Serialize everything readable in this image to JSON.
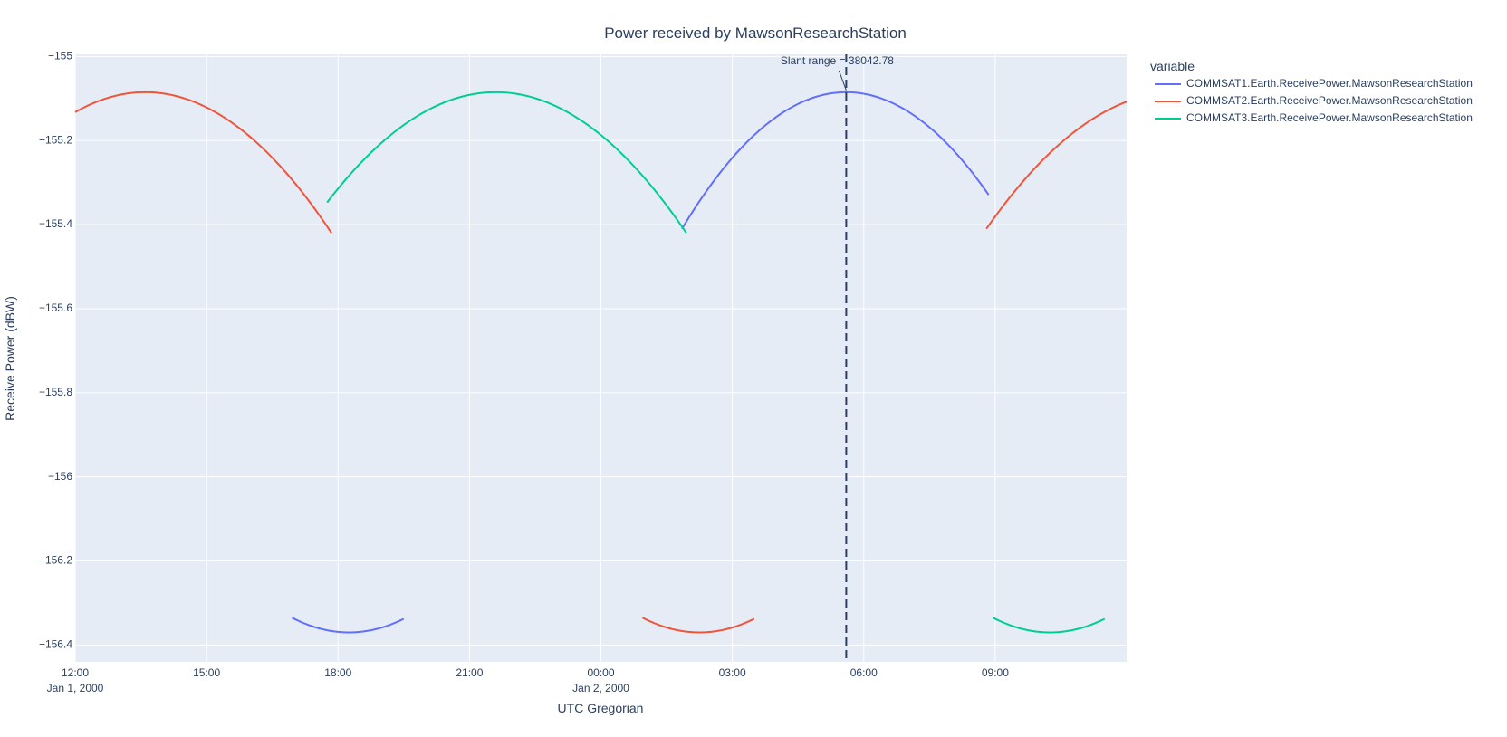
{
  "chart_data": {
    "type": "line",
    "title": "Power received by MawsonResearchStation",
    "xlabel": "UTC Gregorian",
    "ylabel": "Receive Power (dBW)",
    "x_unit": "hours since 2000-01-01 00:00 UTC",
    "xlim": [
      12,
      36
    ],
    "ylim": [
      -156.44,
      -154.995
    ],
    "grid": true,
    "plot_background": "#e5ecf6",
    "x_ticks": [
      {
        "value": 12,
        "label": "12:00",
        "sublabel": "Jan 1, 2000"
      },
      {
        "value": 15,
        "label": "15:00",
        "sublabel": ""
      },
      {
        "value": 18,
        "label": "18:00",
        "sublabel": ""
      },
      {
        "value": 21,
        "label": "21:00",
        "sublabel": ""
      },
      {
        "value": 24,
        "label": "00:00",
        "sublabel": "Jan 2, 2000"
      },
      {
        "value": 27,
        "label": "03:00",
        "sublabel": ""
      },
      {
        "value": 30,
        "label": "06:00",
        "sublabel": ""
      },
      {
        "value": 33,
        "label": "09:00",
        "sublabel": ""
      }
    ],
    "y_ticks": [
      {
        "value": -155,
        "label": "−155"
      },
      {
        "value": -155.2,
        "label": "−155.2"
      },
      {
        "value": -155.4,
        "label": "−155.4"
      },
      {
        "value": -155.6,
        "label": "−155.6"
      },
      {
        "value": -155.8,
        "label": "−155.8"
      },
      {
        "value": -156,
        "label": "−156"
      },
      {
        "value": -156.2,
        "label": "−156.2"
      },
      {
        "value": -156.4,
        "label": "−156.4"
      }
    ],
    "legend": {
      "title": "variable",
      "position": "top-right"
    },
    "series": [
      {
        "name": "COMMSAT1.Earth.ReceivePower.MawsonResearchStation",
        "color": "#636efa",
        "segments": [
          {
            "type": "arc",
            "x_start": 16.95,
            "x_end": 19.5,
            "x_peak": 18.25,
            "y_peak": -156.37,
            "y_edge": -156.335
          },
          {
            "type": "arc",
            "x_start": 25.85,
            "x_end": 32.85,
            "x_peak": 29.6,
            "y_peak": -155.085,
            "y_edge": -155.41
          }
        ]
      },
      {
        "name": "COMMSAT2.Earth.ReceivePower.MawsonResearchStation",
        "color": "#ef553b",
        "segments": [
          {
            "type": "arc",
            "x_start": 12,
            "x_end": 17.85,
            "x_peak": 13.6,
            "y_peak": -155.085,
            "y_edge": -155.42
          },
          {
            "type": "arc",
            "x_start": 24.95,
            "x_end": 27.5,
            "x_peak": 26.25,
            "y_peak": -156.37,
            "y_edge": -156.335
          },
          {
            "type": "arc",
            "x_start": 32.8,
            "x_end": 36,
            "x_peak": 37.15,
            "y_peak": -155.085,
            "y_edge": -155.41
          }
        ]
      },
      {
        "name": "COMMSAT3.Earth.ReceivePower.MawsonResearchStation",
        "color": "#00cc96",
        "segments": [
          {
            "type": "arc",
            "x_start": 17.75,
            "x_end": 25.95,
            "x_peak": 21.6,
            "y_peak": -155.085,
            "y_edge": -155.42
          },
          {
            "type": "arc",
            "x_start": 32.95,
            "x_end": 35.5,
            "x_peak": 34.25,
            "y_peak": -156.37,
            "y_edge": -156.335
          }
        ]
      }
    ],
    "annotations": [
      {
        "type": "vline",
        "x": 29.6,
        "style": "dashed",
        "color": "#2a3f5f"
      },
      {
        "type": "text",
        "text": "Slant range = 38042.78",
        "x": 29.6,
        "y": -155.085
      }
    ]
  }
}
